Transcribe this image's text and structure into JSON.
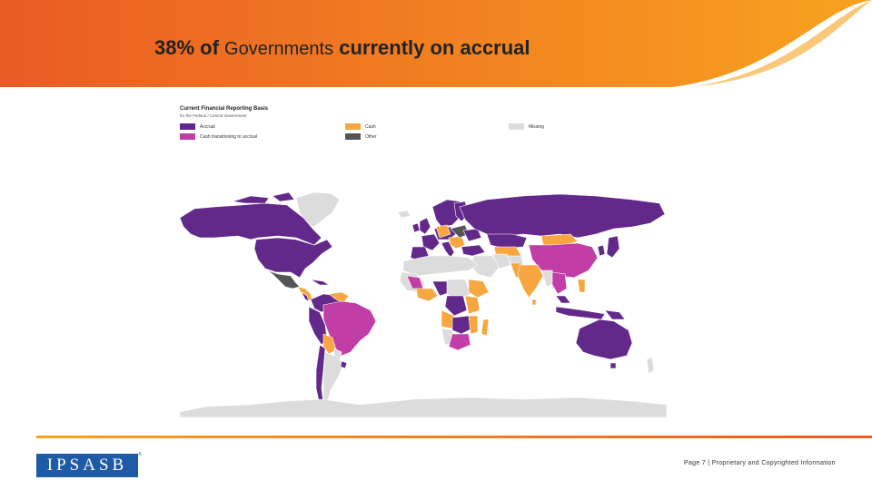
{
  "header": {
    "title_part1": "38% of",
    "title_part2": "Governments",
    "title_part3": "currently on accrual",
    "gradient_start": "#ea5b23",
    "gradient_end": "#f8a31f"
  },
  "legend": {
    "title": "Current Financial Reporting Basis",
    "subtitle": "for the Federal / Central Government",
    "items": [
      {
        "label": "Accrual",
        "color": "#63298a"
      },
      {
        "label": "Cash transitioning to accrual",
        "color": "#c13ea7"
      },
      {
        "label": "Cash",
        "color": "#f7a640"
      },
      {
        "label": "Other",
        "color": "#545454"
      },
      {
        "label": "Missing",
        "color": "#dcdcdc"
      }
    ]
  },
  "map": {
    "background": "#ffffff",
    "missing_color": "#dcdcdc",
    "border_color": "#ffffff"
  },
  "footer": {
    "logo_text": "IPSASB",
    "logo_mark": "®",
    "page_info": "Page 7 | Proprietary and Copyrighted Information",
    "line_color": "#ea5b23"
  }
}
